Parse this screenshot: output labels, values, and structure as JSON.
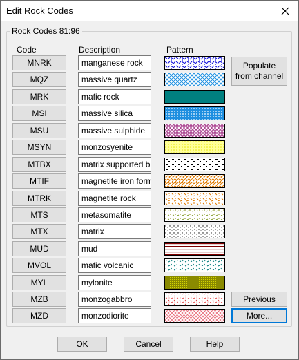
{
  "window": {
    "title": "Edit Rock Codes"
  },
  "group": {
    "label": "Rock Codes 81:96"
  },
  "headers": {
    "code": "Code",
    "description": "Description",
    "pattern": "Pattern"
  },
  "rows": [
    {
      "code": "MNRK",
      "description": "manganese rock",
      "pattern": "manganese-pattern"
    },
    {
      "code": "MQZ",
      "description": "massive quartz",
      "pattern": "blue-crosshatch-pattern"
    },
    {
      "code": "MRK",
      "description": "mafic rock",
      "pattern": "solid-teal-pattern"
    },
    {
      "code": "MSI",
      "description": "massive silica",
      "pattern": "blue-dots-pattern"
    },
    {
      "code": "MSU",
      "description": "massive sulphide",
      "pattern": "purple-circles-pattern"
    },
    {
      "code": "MSYN",
      "description": "monzosyenite",
      "pattern": "yellow-dots-pattern"
    },
    {
      "code": "MTBX",
      "description": "matrix supported breccia",
      "pattern": "black-breccia-pattern"
    },
    {
      "code": "MTIF",
      "description": "magnetite iron formation",
      "pattern": "orange-hatch-pattern"
    },
    {
      "code": "MTRK",
      "description": "magnetite rock",
      "pattern": "orange-dashes-pattern"
    },
    {
      "code": "MTS",
      "description": "metasomatite",
      "pattern": "olive-speckle-pattern"
    },
    {
      "code": "MTX",
      "description": "matrix",
      "pattern": "black-speckle-pattern"
    },
    {
      "code": "MUD",
      "description": "mud",
      "pattern": "maroon-lines-pattern"
    },
    {
      "code": "MVOL",
      "description": "mafic volcanic",
      "pattern": "teal-speckle-pattern"
    },
    {
      "code": "MYL",
      "description": "mylonite",
      "pattern": "olive-mesh-pattern"
    },
    {
      "code": "MZB",
      "description": "monzogabbro",
      "pattern": "red-speckle-pattern"
    },
    {
      "code": "MZD",
      "description": "monzodiorite",
      "pattern": "pink-crosshatch-pattern"
    }
  ],
  "side_buttons": {
    "populate": "Populate from channel",
    "previous": "Previous",
    "more": "More..."
  },
  "footer": {
    "ok": "OK",
    "cancel": "Cancel",
    "help": "Help"
  },
  "icons": {
    "close": "close-icon"
  },
  "colors": {
    "accent": "#0078d7",
    "button_face": "#e1e1e1",
    "button_border": "#adadad"
  }
}
